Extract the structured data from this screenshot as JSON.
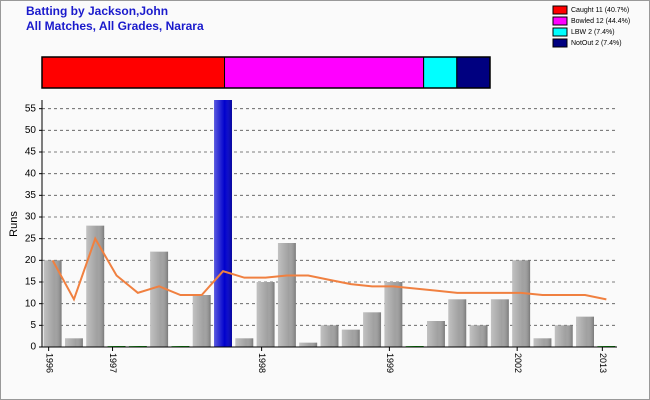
{
  "chart_data": [
    {
      "type": "bar",
      "title": "Batting by Jackson,John",
      "subtitle": "All Matches, All Grades, Narara",
      "y_label": "Runs",
      "categories": [
        "1996",
        null,
        null,
        "1997",
        null,
        null,
        null,
        null,
        null,
        null,
        "1998",
        null,
        null,
        null,
        null,
        null,
        "1999",
        null,
        null,
        null,
        null,
        null,
        "2002",
        null,
        null,
        null,
        "2013"
      ],
      "values": [
        20,
        2,
        28,
        0,
        0,
        22,
        0,
        12,
        57,
        2,
        15,
        24,
        1,
        5,
        4,
        8,
        15,
        0,
        6,
        11,
        5,
        11,
        20,
        2,
        5,
        7,
        0
      ],
      "colors": [
        "#a0a0a0",
        "#a0a0a0",
        "#a0a0a0",
        "#00a000",
        "#00a000",
        "#a0a0a0",
        "#00a000",
        "#a0a0a0",
        "#0000cc",
        "#a0a0a0",
        "#a0a0a0",
        "#a0a0a0",
        "#a0a0a0",
        "#a0a0a0",
        "#a0a0a0",
        "#a0a0a0",
        "#a0a0a0",
        "#00a000",
        "#a0a0a0",
        "#a0a0a0",
        "#a0a0a0",
        "#a0a0a0",
        "#a0a0a0",
        "#a0a0a0",
        "#a0a0a0",
        "#a0a0a0",
        "#00a000"
      ],
      "line": {
        "color": "#f08040",
        "values": [
          20,
          11,
          25,
          16.5,
          12.5,
          14,
          12,
          12,
          17.5,
          16,
          16,
          16.5,
          16.5,
          15.5,
          14.5,
          14,
          14,
          13.5,
          13,
          12.5,
          12.5,
          12.5,
          12.5,
          12,
          12,
          12,
          11
        ]
      },
      "ylim": [
        0,
        57
      ],
      "yticks": [
        0,
        5,
        10,
        15,
        20,
        25,
        30,
        35,
        40,
        45,
        50,
        55
      ],
      "grid": true
    },
    {
      "type": "stacked-bar",
      "series": [
        {
          "name": "Caught 11 (40.7%)",
          "color": "#ff0000",
          "values": [
            11
          ]
        },
        {
          "name": "Bowled 12 (44.4%)",
          "color": "#ff00ff",
          "values": [
            12
          ]
        },
        {
          "name": "LBW 2 (7.4%)",
          "color": "#00ffff",
          "values": [
            2
          ]
        },
        {
          "name": "NotOut 2 (7.4%)",
          "color": "#000080",
          "values": [
            2
          ]
        }
      ]
    }
  ]
}
